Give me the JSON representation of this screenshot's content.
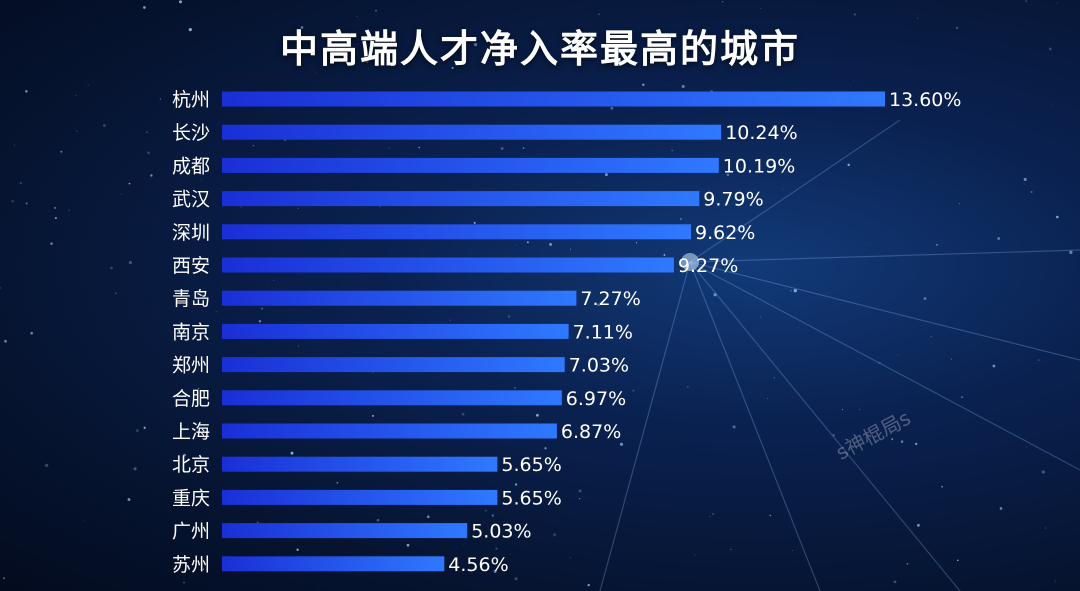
{
  "title": "中高端人才净入率最高的城市",
  "watermark": "s神棍局s",
  "colors": {
    "bar_start": "#1a2fd6",
    "bar_end": "#2f79ff",
    "text": "#ffffff"
  },
  "chart_data": {
    "type": "bar",
    "orientation": "horizontal",
    "title": "中高端人才净入率最高的城市",
    "categories": [
      "杭州",
      "长沙",
      "成都",
      "武汉",
      "深圳",
      "西安",
      "青岛",
      "南京",
      "郑州",
      "合肥",
      "上海",
      "北京",
      "重庆",
      "广州",
      "苏州"
    ],
    "values": [
      13.6,
      10.24,
      10.19,
      9.79,
      9.62,
      9.27,
      7.27,
      7.11,
      7.03,
      6.97,
      6.87,
      5.65,
      5.65,
      5.03,
      4.56
    ],
    "value_labels": [
      "13.60%",
      "10.24%",
      "10.19%",
      "9.79%",
      "9.62%",
      "9.27%",
      "7.27%",
      "7.11%",
      "7.03%",
      "6.97%",
      "6.87%",
      "5.65%",
      "5.65%",
      "5.03%",
      "4.56%"
    ],
    "unit": "%",
    "xlim": [
      0,
      13.6
    ],
    "grid": false,
    "legend": "none"
  }
}
